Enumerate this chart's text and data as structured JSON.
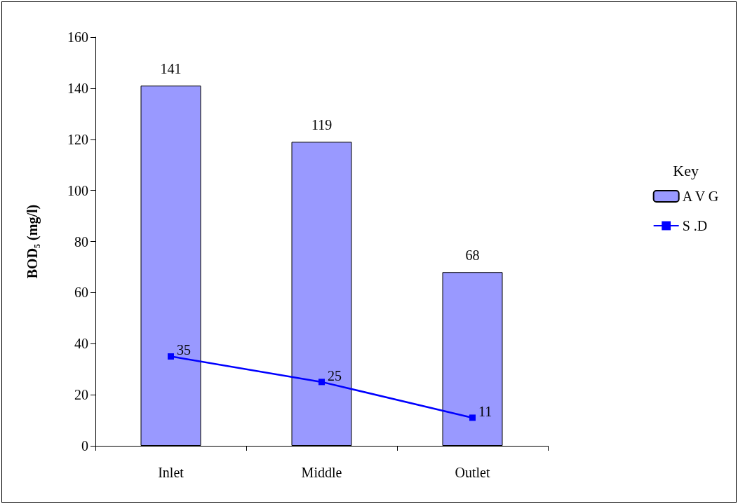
{
  "chart_data": {
    "type": "bar",
    "ylabel": "BOD₅ (mg/l)",
    "legend_title": "Key",
    "categories": [
      "Inlet",
      "Middle",
      "Outlet"
    ],
    "series": [
      {
        "name": "A V G",
        "color": "#9999ff",
        "values": [
          141,
          119,
          68
        ]
      },
      {
        "name": "S .D",
        "type": "line",
        "color": "#0000ff",
        "values": [
          35,
          25,
          11
        ]
      }
    ],
    "ylim": [
      0,
      160
    ],
    "yticks": [
      0,
      20,
      40,
      60,
      80,
      100,
      120,
      140,
      160
    ],
    "data_labels": true,
    "legend": "right",
    "marker": "square",
    "line_style": "solid",
    "grid": false
  }
}
